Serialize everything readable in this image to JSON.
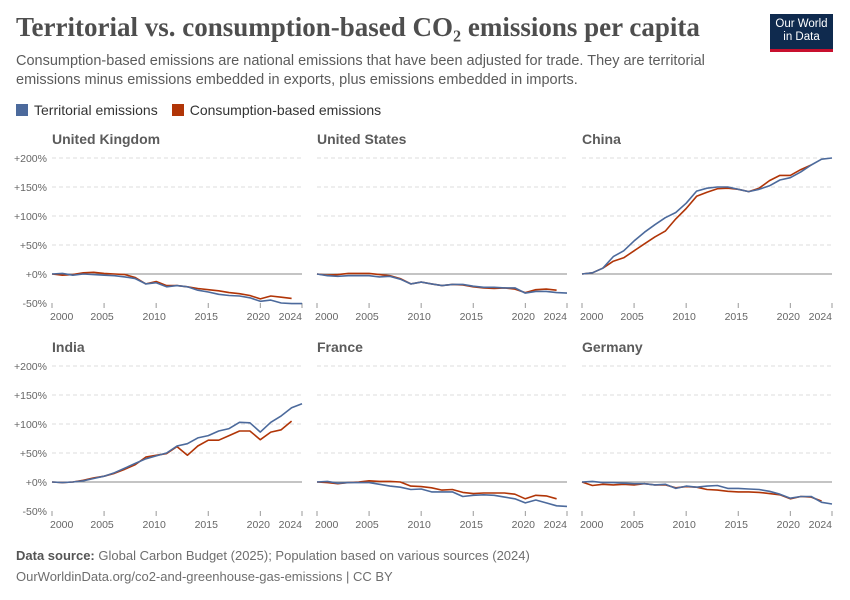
{
  "title": "Territorial vs. consumption-based CO₂ emissions per capita",
  "subtitle": "Consumption-based emissions are national emissions that have been adjusted for trade. They are territorial emissions minus emissions embedded in exports, plus emissions embedded in imports.",
  "logo": "Our World in Data",
  "legend": [
    {
      "label": "Territorial emissions",
      "color": "#4c6a9c"
    },
    {
      "label": "Consumption-based emissions",
      "color": "#b13507"
    }
  ],
  "footer": {
    "source_label": "Data source:",
    "source": "Global Carbon Budget (2025); Population based on various sources (2024)",
    "url": "OurWorldinData.org/co2-and-greenhouse-gas-emissions | CC BY"
  },
  "chart_data": {
    "type": "line",
    "layout": "small multiples, 3 columns x 2 rows, shared y axis",
    "xlim": [
      2000,
      2024
    ],
    "ylim": [
      -50,
      200
    ],
    "x_ticks": [
      "2000",
      "2005",
      "2010",
      "2015",
      "2020",
      "2024"
    ],
    "y_ticks": [
      "+200%",
      "+150%",
      "+100%",
      "+50%",
      "+0%",
      "-50%"
    ],
    "y_tick_values": [
      200,
      150,
      100,
      50,
      0,
      -50
    ],
    "grid": "horizontal dashed",
    "legend_position": "top-left",
    "x_start": 2000,
    "panels": [
      {
        "title": "United Kingdom",
        "territorial": [
          0,
          1,
          -2,
          0,
          -1,
          -2,
          -3,
          -5,
          -8,
          -17,
          -15,
          -22,
          -20,
          -22,
          -28,
          -31,
          -35,
          -37,
          -38,
          -41,
          -47,
          -45,
          -50,
          -51,
          -51
        ],
        "consumption": [
          0,
          -2,
          -1,
          2,
          3,
          1,
          0,
          -1,
          -6,
          -17,
          -13,
          -20,
          -20,
          -22,
          -25,
          -27,
          -29,
          -32,
          -34,
          -37,
          -43,
          -38,
          -40,
          -42
        ]
      },
      {
        "title": "United States",
        "territorial": [
          0,
          -3,
          -4,
          -3,
          -3,
          -3,
          -5,
          -4,
          -9,
          -17,
          -14,
          -17,
          -20,
          -18,
          -18,
          -21,
          -23,
          -23,
          -24,
          -24,
          -33,
          -30,
          -30,
          -32,
          -33
        ],
        "consumption": [
          0,
          -2,
          -1,
          1,
          1,
          1,
          -1,
          -3,
          -8,
          -17,
          -14,
          -17,
          -20,
          -18,
          -19,
          -22,
          -24,
          -25,
          -24,
          -26,
          -32,
          -27,
          -26,
          -28
        ]
      },
      {
        "title": "China",
        "territorial": [
          0,
          2,
          10,
          30,
          40,
          57,
          72,
          85,
          97,
          106,
          122,
          143,
          148,
          150,
          150,
          146,
          142,
          146,
          152,
          162,
          166,
          176,
          188,
          198,
          200
        ],
        "consumption": [
          0,
          2,
          10,
          22,
          28,
          40,
          52,
          64,
          74,
          95,
          113,
          134,
          141,
          147,
          148,
          146,
          142,
          148,
          161,
          170,
          170,
          180,
          188
        ]
      },
      {
        "title": "India",
        "territorial": [
          0,
          -1,
          0,
          2,
          6,
          10,
          16,
          24,
          32,
          40,
          45,
          50,
          62,
          66,
          76,
          80,
          88,
          92,
          103,
          102,
          86,
          103,
          114,
          128,
          135
        ],
        "consumption": [
          0,
          -1,
          0,
          3,
          7,
          10,
          15,
          22,
          30,
          43,
          46,
          49,
          61,
          46,
          62,
          72,
          72,
          80,
          88,
          88,
          73,
          86,
          90,
          105
        ]
      },
      {
        "title": "France",
        "territorial": [
          0,
          1,
          -2,
          -1,
          -1,
          -1,
          -4,
          -7,
          -9,
          -13,
          -12,
          -17,
          -17,
          -17,
          -25,
          -23,
          -22,
          -23,
          -26,
          -29,
          -36,
          -31,
          -36,
          -41,
          -42
        ],
        "consumption": [
          0,
          -1,
          -3,
          -1,
          0,
          2,
          1,
          1,
          0,
          -7,
          -8,
          -10,
          -14,
          -13,
          -18,
          -20,
          -19,
          -19,
          -19,
          -21,
          -29,
          -23,
          -24,
          -29
        ]
      },
      {
        "title": "Germany",
        "territorial": [
          0,
          1,
          -1,
          -1,
          -2,
          -3,
          -3,
          -5,
          -4,
          -11,
          -7,
          -9,
          -7,
          -6,
          -11,
          -11,
          -12,
          -13,
          -16,
          -21,
          -28,
          -25,
          -25,
          -35,
          -38
        ],
        "consumption": [
          0,
          -6,
          -4,
          -5,
          -4,
          -5,
          -3,
          -5,
          -5,
          -10,
          -8,
          -9,
          -13,
          -14,
          -16,
          -17,
          -17,
          -18,
          -20,
          -22,
          -29,
          -25,
          -26,
          -33
        ]
      }
    ]
  }
}
